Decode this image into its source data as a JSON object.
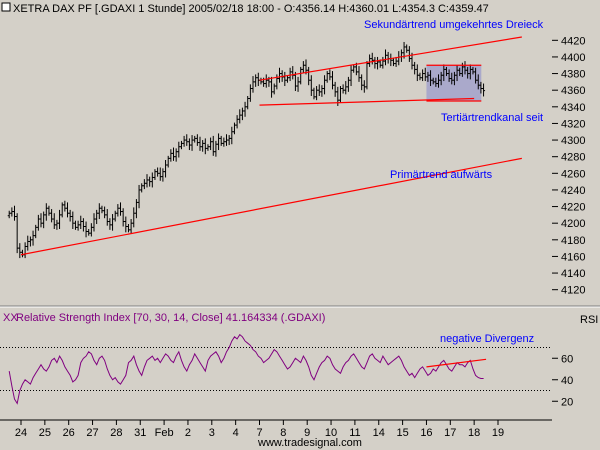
{
  "chart_data": [
    {
      "type": "bar",
      "subtype": "ohlc",
      "title": "XETRA DAX PF [.GDAXI  1 Stunde] 2005/02/18 18:00 - O:4356.14 H:4360.01 L:4354.3 C:4359.47",
      "xlabel": "",
      "ylabel": "",
      "ylim": [
        4110,
        4430
      ],
      "grid": false,
      "x_ticks": [
        "24",
        "25",
        "26",
        "27",
        "28",
        "31",
        "Feb",
        "2",
        "3",
        "4",
        "7",
        "8",
        "9",
        "10",
        "11",
        "14",
        "15",
        "16",
        "17",
        "18",
        "19"
      ],
      "y_ticks": [
        4120,
        4140,
        4160,
        4180,
        4200,
        4220,
        4240,
        4260,
        4280,
        4300,
        4320,
        4340,
        4360,
        4380,
        4400,
        4420
      ],
      "bars_per_day": 9,
      "closes": [
        4212,
        4214,
        4208,
        4170,
        4165,
        4162,
        4172,
        4178,
        4180,
        4185,
        4195,
        4205,
        4200,
        4210,
        4218,
        4212,
        4205,
        4198,
        4200,
        4210,
        4222,
        4218,
        4212,
        4208,
        4200,
        4195,
        4198,
        4202,
        4196,
        4190,
        4188,
        4195,
        4205,
        4212,
        4218,
        4215,
        4210,
        4202,
        4198,
        4205,
        4212,
        4218,
        4214,
        4202,
        4196,
        4192,
        4200,
        4212,
        4225,
        4240,
        4245,
        4248,
        4252,
        4250,
        4255,
        4262,
        4260,
        4256,
        4262,
        4270,
        4278,
        4284,
        4280,
        4286,
        4292,
        4296,
        4300,
        4298,
        4294,
        4300,
        4302,
        4297,
        4292,
        4296,
        4290,
        4292,
        4298,
        4286,
        4295,
        4302,
        4296,
        4298,
        4300,
        4302,
        4310,
        4318,
        4325,
        4330,
        4335,
        4340,
        4350,
        4362,
        4370,
        4375,
        4372,
        4370,
        4368,
        4372,
        4370,
        4358,
        4365,
        4374,
        4380,
        4376,
        4372,
        4375,
        4382,
        4378,
        4365,
        4370,
        4385,
        4390,
        4384,
        4372,
        4360,
        4352,
        4360,
        4358,
        4362,
        4372,
        4380,
        4376,
        4366,
        4358,
        4348,
        4362,
        4360,
        4364,
        4372,
        4384,
        4388,
        4382,
        4375,
        4366,
        4364,
        4392,
        4398,
        4396,
        4392,
        4394,
        4390,
        4395,
        4402,
        4398,
        4396,
        4392,
        4395,
        4400,
        4405,
        4412,
        4408,
        4398,
        4390,
        4385,
        4378,
        4375,
        4380,
        4376,
        4378,
        4372,
        4370,
        4368,
        4372,
        4378,
        4385,
        4380,
        4374,
        4372,
        4378,
        4384,
        4380,
        4388,
        4384,
        4380,
        4385,
        4382,
        4372,
        4366,
        4362,
        4359.47
      ]
    },
    {
      "type": "line",
      "title": "Relative Strength Index [70, 30, 14, Close] 41.164334 (.GDAXI)",
      "ylabel": "RSI",
      "ylim": [
        10,
        90
      ],
      "y_ticks": [
        20,
        40,
        60
      ],
      "reference_lines": [
        70,
        30
      ],
      "series": [
        {
          "values": [
            48,
            34,
            22,
            18,
            30,
            36,
            40,
            38,
            36,
            42,
            46,
            50,
            54,
            50,
            48,
            52,
            58,
            60,
            56,
            62,
            58,
            52,
            48,
            44,
            38,
            40,
            44,
            56,
            60,
            62,
            66,
            64,
            58,
            54,
            60,
            62,
            58,
            50,
            44,
            40,
            42,
            38,
            36,
            40,
            44,
            56,
            58,
            62,
            54,
            48,
            44,
            52,
            58,
            60,
            62,
            58,
            60,
            56,
            60,
            64,
            62,
            58,
            56,
            62,
            66,
            58,
            52,
            48,
            54,
            58,
            64,
            60,
            56,
            52,
            48,
            58,
            62,
            64,
            66,
            62,
            56,
            60,
            66,
            70,
            76,
            80,
            78,
            82,
            80,
            76,
            74,
            72,
            68,
            66,
            62,
            60,
            56,
            58,
            60,
            64,
            68,
            66,
            62,
            58,
            54,
            50,
            52,
            56,
            60,
            58,
            56,
            62,
            58,
            52,
            44,
            40,
            46,
            52,
            56,
            58,
            62,
            60,
            54,
            50,
            48,
            46,
            52,
            56,
            58,
            62,
            64,
            60,
            56,
            52,
            50,
            56,
            62,
            64,
            60,
            58,
            56,
            62,
            58,
            54,
            56,
            58,
            60,
            62,
            58,
            52,
            48,
            44,
            46,
            42,
            46,
            50,
            52,
            48,
            44,
            46,
            50,
            48,
            52,
            56,
            58,
            54,
            50,
            48,
            52,
            56,
            54,
            54,
            52,
            56,
            58,
            50,
            44,
            42,
            41.16,
            41.16
          ]
        }
      ]
    }
  ],
  "annotations": {
    "upper_triangle": "Sekundärtrend umgekehrtes Dreieck",
    "tertiary_channel": "Tertiärtrendkanal seit",
    "primary_trend": "Primärtrend aufwärts",
    "divergence": "negative Divergenz"
  },
  "trendlines": {
    "primary": {
      "from_day": 0,
      "from_value": 4162,
      "to_day": 21,
      "to_value": 4278
    },
    "triangle_upper": {
      "from_day": 10,
      "from_value": 4372,
      "to_day": 21,
      "to_value": 4424
    },
    "triangle_lower": {
      "from_day": 10,
      "from_value": 4342,
      "to_day": 19,
      "to_value": 4350
    },
    "channel_top": {
      "from_day": 17,
      "from_value": 4390,
      "to_day": 19.3,
      "to_value": 4390
    },
    "channel_bottom": {
      "from_day": 17,
      "from_value": 4347,
      "to_day": 19.3,
      "to_value": 4347
    },
    "rsi_divergence": {
      "from_day": 17,
      "from_value": 52,
      "to_day": 19.5,
      "to_value": 59
    }
  },
  "indicator_label": "XX",
  "watermark": "www.tradesignal.com",
  "colors": {
    "background": "#d4d0c8",
    "price_bars": "#000000",
    "trendline": "#ff0000",
    "annotation": "#0000ff",
    "rsi_line": "#800080",
    "rsi_title": "#800080",
    "channel_fill": "#9999cc",
    "reference_dots": "#000000"
  }
}
